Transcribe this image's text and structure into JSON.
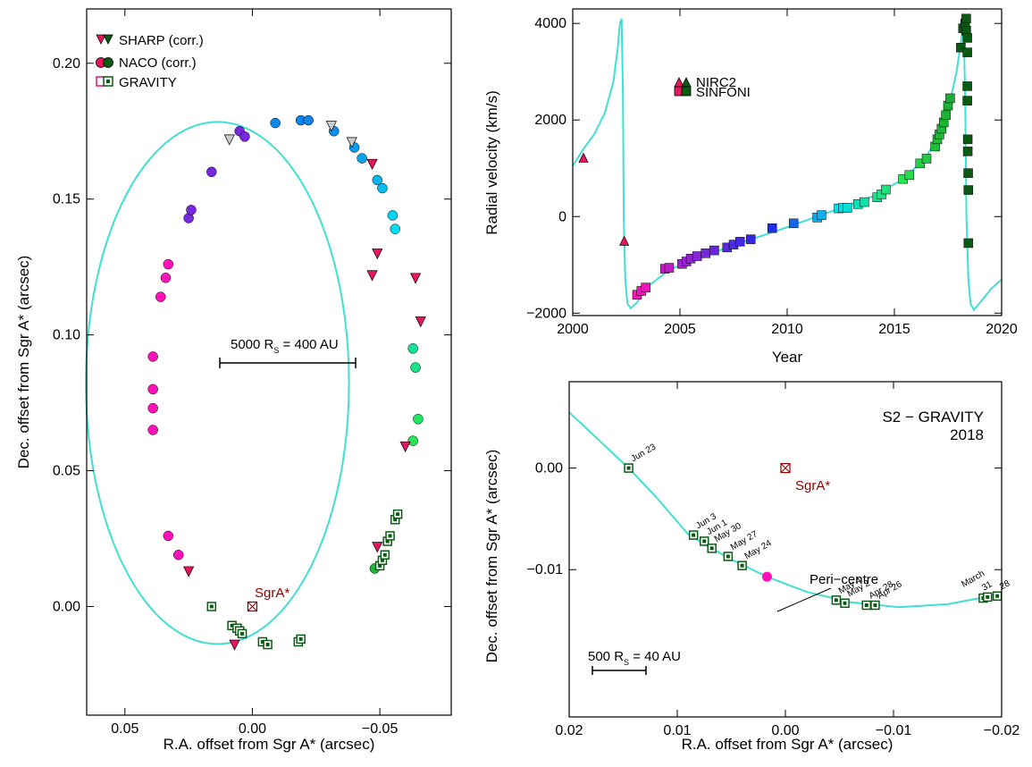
{
  "chart_data": [
    {
      "id": "orbit",
      "type": "scatter",
      "xlabel": "R.A. offset from Sgr A* (arcsec)",
      "ylabel": "Dec. offset from Sgr A* (arcsec)",
      "xlim": [
        0.065,
        -0.078
      ],
      "ylim": [
        -0.04,
        0.22
      ],
      "xticks": [
        0.05,
        0.0,
        -0.05
      ],
      "xtick_labels": [
        "0.05",
        "0.00",
        "−0.05"
      ],
      "yticks": [
        0.0,
        0.05,
        0.1,
        0.15,
        0.2
      ],
      "ytick_labels": [
        "0.00",
        "0.05",
        "0.10",
        "0.15",
        "0.20"
      ],
      "legend": [
        "SHARP (corr.)",
        "NACO (corr.)",
        "GRAVITY"
      ],
      "legend_position": "top-left",
      "scale_bar_label": "5000 R",
      "scale_bar_sub": "S",
      "scale_bar_rest": " = 400 AU",
      "sgra_label": "SgrA*",
      "model_orbit": {
        "center": [
          0.0137,
          0.0823
        ],
        "semi_axis_x": 0.0516,
        "semi_axis_y": 0.0961
      },
      "sharp": [
        [
          0.025,
          0.013
        ],
        [
          0.007,
          -0.014
        ],
        [
          -0.049,
          0.022
        ],
        [
          -0.06,
          0.059
        ],
        [
          -0.047,
          0.122
        ],
        [
          -0.049,
          0.13
        ],
        [
          -0.064,
          0.121
        ],
        [
          -0.066,
          0.105
        ],
        [
          -0.047,
          0.163
        ],
        [
          -0.039,
          0.171
        ],
        [
          -0.031,
          0.177
        ],
        [
          0.009,
          0.172
        ]
      ],
      "naco": [
        [
          0.039,
          0.065
        ],
        [
          0.039,
          0.073
        ],
        [
          0.039,
          0.08
        ],
        [
          0.039,
          0.092
        ],
        [
          0.036,
          0.114
        ],
        [
          0.034,
          0.121
        ],
        [
          0.033,
          0.126
        ],
        [
          0.025,
          0.143
        ],
        [
          0.024,
          0.146
        ],
        [
          0.016,
          0.16
        ],
        [
          0.005,
          0.175
        ],
        [
          0.003,
          0.173
        ],
        [
          -0.009,
          0.178
        ],
        [
          -0.019,
          0.179
        ],
        [
          -0.022,
          0.179
        ],
        [
          -0.032,
          0.175
        ],
        [
          -0.04,
          0.169
        ],
        [
          -0.043,
          0.165
        ],
        [
          -0.049,
          0.157
        ],
        [
          -0.051,
          0.154
        ],
        [
          -0.055,
          0.144
        ],
        [
          -0.056,
          0.139
        ],
        [
          -0.063,
          0.095
        ],
        [
          -0.064,
          0.088
        ],
        [
          -0.065,
          0.069
        ],
        [
          -0.063,
          0.061
        ],
        [
          0.033,
          0.026
        ],
        [
          0.029,
          0.019
        ],
        [
          -0.048,
          0.014
        ]
      ],
      "gravity": [
        [
          0.016,
          0.0
        ],
        [
          0.008,
          -0.007
        ],
        [
          0.006,
          -0.008
        ],
        [
          0.005,
          -0.009
        ],
        [
          0.004,
          -0.01
        ],
        [
          -0.004,
          -0.013
        ],
        [
          -0.006,
          -0.014
        ],
        [
          -0.018,
          -0.013
        ],
        [
          -0.019,
          -0.012
        ],
        [
          -0.05,
          0.015
        ],
        [
          -0.051,
          0.017
        ],
        [
          -0.052,
          0.019
        ],
        [
          -0.053,
          0.024
        ],
        [
          -0.054,
          0.026
        ],
        [
          -0.056,
          0.032
        ],
        [
          -0.057,
          0.034
        ]
      ]
    },
    {
      "id": "rv",
      "type": "scatter",
      "xlabel": "Year",
      "ylabel": "Radial velocity (km/s)",
      "xlim": [
        2000,
        2020
      ],
      "ylim": [
        -2050,
        4300
      ],
      "xticks": [
        2000,
        2005,
        2010,
        2015,
        2020
      ],
      "xtick_labels": [
        "2000",
        "2005",
        "2010",
        "2015",
        "2020"
      ],
      "yticks": [
        -2000,
        0,
        2000,
        4000
      ],
      "ytick_labels": [
        "−2000",
        "0",
        "2000",
        "4000"
      ],
      "legend": [
        "NIRC2",
        "SINFONI"
      ],
      "legend_position": "top-center",
      "nirc2": [
        [
          2000.5,
          1200
        ],
        [
          2002.4,
          -520
        ]
      ],
      "sinfoni": [
        [
          2003.0,
          -1620
        ],
        [
          2003.2,
          -1540
        ],
        [
          2003.4,
          -1470
        ],
        [
          2004.3,
          -1080
        ],
        [
          2004.5,
          -1060
        ],
        [
          2005.1,
          -980
        ],
        [
          2005.3,
          -930
        ],
        [
          2005.5,
          -870
        ],
        [
          2005.8,
          -820
        ],
        [
          2006.2,
          -760
        ],
        [
          2006.6,
          -700
        ],
        [
          2007.2,
          -640
        ],
        [
          2007.5,
          -580
        ],
        [
          2007.8,
          -520
        ],
        [
          2008.3,
          -470
        ],
        [
          2009.3,
          -240
        ],
        [
          2010.3,
          -140
        ],
        [
          2011.4,
          -20
        ],
        [
          2011.6,
          30
        ],
        [
          2012.4,
          170
        ],
        [
          2012.6,
          180
        ],
        [
          2012.8,
          180
        ],
        [
          2013.3,
          260
        ],
        [
          2013.6,
          300
        ],
        [
          2014.2,
          400
        ],
        [
          2014.4,
          460
        ],
        [
          2014.6,
          560
        ],
        [
          2015.4,
          780
        ],
        [
          2015.7,
          860
        ],
        [
          2016.2,
          1100
        ],
        [
          2016.5,
          1200
        ],
        [
          2016.9,
          1450
        ],
        [
          2017.0,
          1600
        ],
        [
          2017.1,
          1700
        ],
        [
          2017.2,
          1820
        ],
        [
          2017.3,
          1950
        ],
        [
          2017.4,
          2100
        ],
        [
          2017.5,
          2300
        ],
        [
          2017.6,
          2450
        ],
        [
          2018.1,
          3500
        ],
        [
          2018.2,
          3900
        ],
        [
          2018.3,
          4000
        ],
        [
          2018.35,
          4100
        ],
        [
          2018.35,
          3850
        ],
        [
          2018.4,
          3700
        ],
        [
          2018.4,
          3400
        ],
        [
          2018.4,
          2700
        ],
        [
          2018.4,
          2400
        ],
        [
          2018.42,
          1600
        ],
        [
          2018.42,
          1350
        ],
        [
          2018.44,
          900
        ],
        [
          2018.45,
          550
        ],
        [
          2018.45,
          -550
        ]
      ],
      "model_rv": [
        [
          2000.0,
          1050
        ],
        [
          2000.5,
          1400
        ],
        [
          2001.0,
          1700
        ],
        [
          2001.5,
          2150
        ],
        [
          2001.9,
          2800
        ],
        [
          2002.1,
          3500
        ],
        [
          2002.2,
          4000
        ],
        [
          2002.28,
          4100
        ],
        [
          2002.34,
          2500
        ],
        [
          2002.38,
          0
        ],
        [
          2002.45,
          -1300
        ],
        [
          2002.55,
          -1800
        ],
        [
          2002.7,
          -1900
        ],
        [
          2003.0,
          -1780
        ],
        [
          2003.5,
          -1450
        ],
        [
          2004.5,
          -1100
        ],
        [
          2006.0,
          -830
        ],
        [
          2008.0,
          -520
        ],
        [
          2010.0,
          -220
        ],
        [
          2012.0,
          100
        ],
        [
          2014.0,
          420
        ],
        [
          2015.5,
          800
        ],
        [
          2016.5,
          1250
        ],
        [
          2017.2,
          1800
        ],
        [
          2017.6,
          2400
        ],
        [
          2017.9,
          3000
        ],
        [
          2018.1,
          3600
        ],
        [
          2018.22,
          4050
        ],
        [
          2018.3,
          2500
        ],
        [
          2018.36,
          0
        ],
        [
          2018.45,
          -1300
        ],
        [
          2018.55,
          -1800
        ],
        [
          2018.7,
          -1930
        ],
        [
          2019.0,
          -1780
        ],
        [
          2019.5,
          -1500
        ],
        [
          2020.0,
          -1300
        ]
      ]
    },
    {
      "id": "pericentre",
      "type": "scatter",
      "title": "S2 − GRAVITY",
      "subtitle": "2018",
      "xlabel": "R.A. offset from Sgr A* (arcsec)",
      "ylabel": "Dec. offset from Sgr A* (arcsec)",
      "xlim": [
        0.02,
        -0.02
      ],
      "ylim": [
        -0.0245,
        0.0085
      ],
      "xticks": [
        0.02,
        0.01,
        0.0,
        -0.01,
        -0.02
      ],
      "xtick_labels": [
        "0.02",
        "0.01",
        "0.00",
        "−0.01",
        "−0.02"
      ],
      "yticks": [
        0.0,
        -0.01
      ],
      "ytick_labels": [
        "0.00",
        "−0.01"
      ],
      "scale_bar_label": "500 R",
      "scale_bar_sub": "S",
      "scale_bar_rest": " = 40 AU",
      "sgra_label": "SgrA*",
      "peri_label": "Peri−centre",
      "pericentre_point": [
        0.0017,
        -0.0107
      ],
      "model_path": [
        [
          0.02,
          0.0055
        ],
        [
          0.017,
          0.0025
        ],
        [
          0.0145,
          0.0
        ],
        [
          0.012,
          -0.0028
        ],
        [
          0.009,
          -0.0065
        ],
        [
          0.0075,
          -0.0075
        ],
        [
          0.005,
          -0.009
        ],
        [
          0.0017,
          -0.0107
        ],
        [
          -0.002,
          -0.0122
        ],
        [
          -0.006,
          -0.0132
        ],
        [
          -0.0105,
          -0.0137
        ],
        [
          -0.015,
          -0.0134
        ],
        [
          -0.02,
          -0.0124
        ]
      ],
      "points": [
        {
          "x": 0.0145,
          "y": 0.0,
          "label": "Jun 23"
        },
        {
          "x": 0.0085,
          "y": -0.0066,
          "label": "Jun 3"
        },
        {
          "x": 0.0075,
          "y": -0.0072,
          "label": "Jun 1"
        },
        {
          "x": 0.0068,
          "y": -0.0079,
          "label": "May 30"
        },
        {
          "x": 0.0053,
          "y": -0.0087,
          "label": "May 27"
        },
        {
          "x": 0.004,
          "y": -0.0096,
          "label": "May 24"
        },
        {
          "x": -0.0047,
          "y": -0.013,
          "label": "May 4"
        },
        {
          "x": -0.0055,
          "y": -0.0133,
          "label": "May 2"
        },
        {
          "x": -0.0075,
          "y": -0.0135,
          "label": "Apr 28"
        },
        {
          "x": -0.0083,
          "y": -0.0135,
          "label": "Apr 26"
        },
        {
          "x": -0.0183,
          "y": -0.0128,
          "label": "March"
        },
        {
          "x": -0.0187,
          "y": -0.0127,
          "label": "31"
        },
        {
          "x": -0.0196,
          "y": -0.0126,
          "label": "28"
        }
      ]
    }
  ],
  "colors": {
    "model_curve": "#40e0d0",
    "sharp": "#e8175d",
    "naco_early": "#ff10b8",
    "gravity": "#0a5a14",
    "sgra": "#8b0000",
    "peri": "#ff10b8"
  }
}
